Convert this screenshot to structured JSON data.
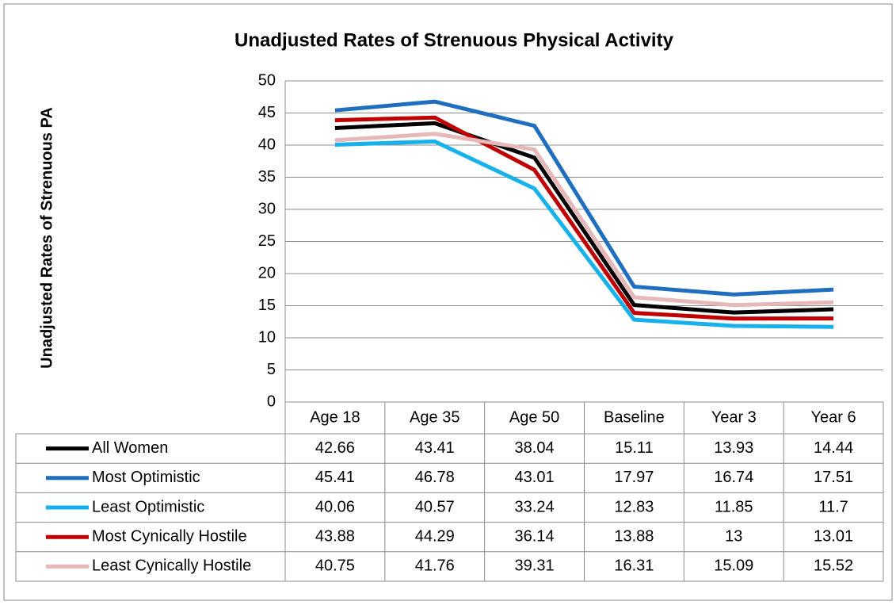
{
  "chart_data": {
    "type": "line",
    "title": "Unadjusted Rates of Strenuous Physical Activity",
    "y_label": "Unadjusted Rates of Strenuous PA",
    "categories": [
      "Age 18",
      "Age 35",
      "Age 50",
      "Baseline",
      "Year 3",
      "Year 6"
    ],
    "series": [
      {
        "name": "All Women",
        "color": "#000000",
        "values": [
          42.66,
          43.41,
          38.04,
          15.11,
          13.93,
          14.44
        ]
      },
      {
        "name": "Most Optimistic",
        "color": "#1f6fbe",
        "values": [
          45.41,
          46.78,
          43.01,
          17.97,
          16.74,
          17.51
        ]
      },
      {
        "name": "Least Optimistic",
        "color": "#17b1eb",
        "values": [
          40.06,
          40.57,
          33.24,
          12.83,
          11.85,
          11.7
        ]
      },
      {
        "name": "Most Cynically Hostile",
        "color": "#c00000",
        "values": [
          43.88,
          44.29,
          36.14,
          13.88,
          13,
          13.01
        ]
      },
      {
        "name": "Least Cynically Hostile",
        "color": "#e6b8b7",
        "values": [
          40.75,
          41.76,
          39.31,
          16.31,
          15.09,
          15.52
        ]
      }
    ],
    "ylim": [
      0,
      50
    ],
    "yticks": [
      0,
      5,
      10,
      15,
      20,
      25,
      30,
      35,
      40,
      45,
      50
    ],
    "grid": true,
    "data_table": true
  }
}
